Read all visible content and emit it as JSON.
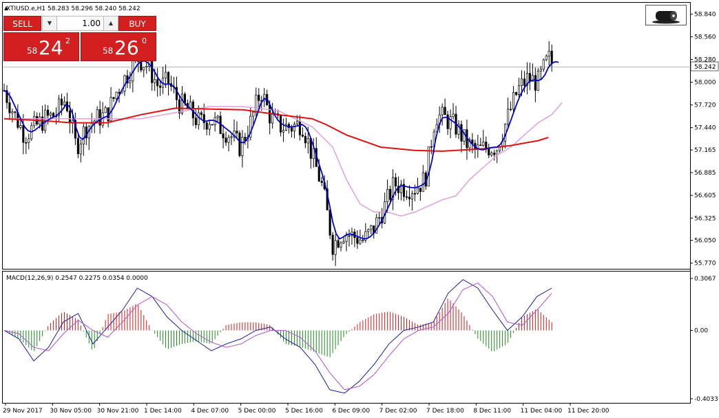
{
  "chart_header": "XTIUSD.e,H1  58.283 58.296 58.240 58.242",
  "last_price_tag": "58.242",
  "price_axis_ticks": [
    "58.840",
    "58.560",
    "58.280",
    "58.000",
    "57.720",
    "57.440",
    "57.165",
    "56.885",
    "56.605",
    "56.325",
    "56.050",
    "55.770"
  ],
  "price_range": [
    55.7,
    58.98
  ],
  "macd_header": "MACD(12,26,9) 0.2547 0.2275 0.0354 0.0000",
  "macd_axis_ticks": [
    "0.3067",
    "0.00",
    "-0.4033"
  ],
  "macd_range": [
    -0.4033,
    0.3067
  ],
  "time_axis_labels": [
    "29 Nov 2017",
    "30 Nov 05:00",
    "30 Nov 21:00",
    "1 Dec 14:00",
    "4 Dec 07:00",
    "5 Dec 00:00",
    "5 Dec 16:00",
    "6 Dec 09:00",
    "7 Dec 02:00",
    "7 Dec 18:00",
    "8 Dec 11:00",
    "11 Dec 04:00",
    "11 Dec 20:00"
  ],
  "trade_panel": {
    "sell_label": "SELL",
    "buy_label": "BUY",
    "lot_value": "1.00",
    "sell_price_prefix": "58",
    "sell_price_big": "24",
    "sell_price_sup": "2",
    "buy_price_prefix": "58",
    "buy_price_big": "26",
    "buy_price_sup": "0",
    "down_arrow": "▼",
    "up_arrow": "▲"
  },
  "colors": {
    "bull_candle": "#ffffff",
    "bear_candle": "#000000",
    "fast_ma": "#0000cc",
    "medium_ma": "#dda0dd",
    "slow_ma": "#dd1111",
    "macd_pos_hist": "#d41414",
    "macd_neg_hist": "#1a8a1a",
    "macd_line": "#1a1aa0",
    "signal_line": "#b050d0",
    "trade_red": "#d31f1f"
  },
  "icons": {
    "logo": "oil-barrel-icon",
    "collapse": "triangle-up-icon"
  },
  "chart_data": {
    "type": "line",
    "series": [
      {
        "x": [
          0,
          15,
          30,
          45,
          60,
          75,
          90,
          105,
          120,
          135,
          150,
          165,
          180,
          195,
          210,
          225,
          240,
          255,
          270,
          285,
          300,
          315,
          330,
          345,
          360,
          375,
          390,
          405,
          420,
          435,
          450,
          465,
          480,
          495,
          510,
          525,
          540,
          555,
          570,
          585,
          600,
          615,
          630,
          645,
          660,
          675,
          690,
          705,
          720,
          735,
          750,
          765,
          780,
          795,
          800
        ],
        "close": [
          57.9,
          57.6,
          57.35,
          57.45,
          57.55,
          57.6,
          57.8,
          57.2,
          57.45,
          57.55,
          57.6,
          57.9,
          58.1,
          58.3,
          58.2,
          57.95,
          58.0,
          57.75,
          57.65,
          57.5,
          57.55,
          57.45,
          57.35,
          57.2,
          57.5,
          57.9,
          57.55,
          57.45,
          57.45,
          57.5,
          57.1,
          56.7,
          56.0,
          56.15,
          56.1,
          56.05,
          56.2,
          56.45,
          56.75,
          56.7,
          56.7,
          56.8,
          57.6,
          57.55,
          57.45,
          57.25,
          57.15,
          57.2,
          57.2,
          57.55,
          57.9,
          58.05,
          58.0,
          58.3,
          58.24
        ]
      },
      {
        "x": [
          0,
          100,
          200,
          300,
          350,
          400,
          450,
          480,
          500,
          520,
          540,
          560,
          580,
          600,
          640,
          660,
          680,
          700,
          720,
          740,
          760,
          780,
          800,
          815
        ],
        "values": [
          57.55,
          57.55,
          57.55,
          57.7,
          57.7,
          57.65,
          57.45,
          57.2,
          56.8,
          56.5,
          56.4,
          56.4,
          56.35,
          56.4,
          56.55,
          56.6,
          56.8,
          56.95,
          57.1,
          57.2,
          57.35,
          57.5,
          57.6,
          57.75
        ]
      },
      {
        "x": [
          0,
          50,
          100,
          150,
          200,
          250,
          300,
          350,
          400,
          450,
          470,
          500,
          550,
          600,
          640,
          680,
          700,
          720,
          740,
          760,
          780,
          795
        ],
        "values": [
          57.55,
          57.53,
          57.5,
          57.5,
          57.6,
          57.68,
          57.67,
          57.66,
          57.6,
          57.55,
          57.48,
          57.35,
          57.2,
          57.16,
          57.15,
          57.17,
          57.18,
          57.2,
          57.22,
          57.25,
          57.28,
          57.32
        ]
      }
    ],
    "macd": [
      0.0,
      -0.05,
      -0.18,
      -0.1,
      0.05,
      0.1,
      -0.08,
      0.02,
      0.12,
      0.25,
      0.2,
      0.08,
      0.0,
      -0.06,
      -0.12,
      -0.08,
      -0.05,
      0.0,
      0.02,
      -0.05,
      -0.1,
      -0.2,
      -0.35,
      -0.37,
      -0.3,
      -0.2,
      -0.08,
      0.0,
      0.02,
      0.05,
      0.22,
      0.3,
      0.25,
      0.12,
      0.0,
      0.08,
      0.2,
      0.25
    ],
    "signal": [
      0.0,
      -0.02,
      -0.1,
      -0.12,
      -0.02,
      0.06,
      0.0,
      -0.04,
      0.05,
      0.15,
      0.2,
      0.15,
      0.05,
      -0.02,
      -0.07,
      -0.1,
      -0.08,
      -0.03,
      0.0,
      0.0,
      -0.04,
      -0.12,
      -0.25,
      -0.35,
      -0.33,
      -0.26,
      -0.15,
      -0.05,
      0.0,
      0.02,
      0.1,
      0.24,
      0.28,
      0.2,
      0.05,
      0.03,
      0.12,
      0.22
    ]
  }
}
